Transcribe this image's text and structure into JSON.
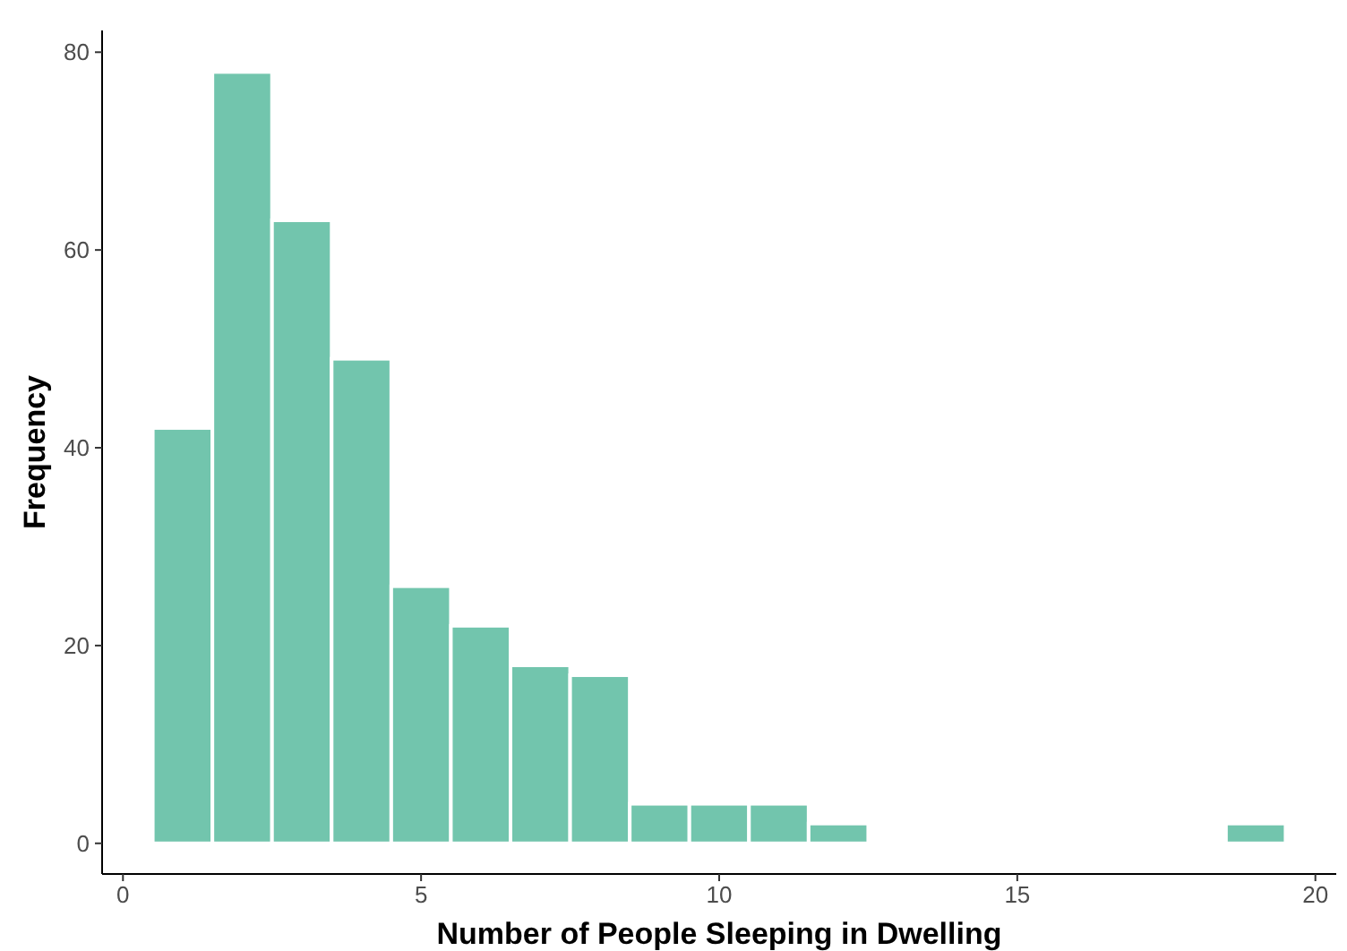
{
  "chart_data": {
    "type": "histogram",
    "xlabel": "Number of People Sleeping in Dwelling",
    "ylabel": "Frequency",
    "bins": [
      0.5,
      1.5,
      2.5,
      3.5,
      4.5,
      5.5,
      6.5,
      7.5,
      8.5,
      9.5,
      10.5,
      11.5,
      12.5,
      13.5,
      14.5,
      15.5,
      16.5,
      17.5,
      18.5,
      19.5
    ],
    "values": [
      42,
      78,
      63,
      49,
      26,
      22,
      18,
      17,
      4,
      4,
      4,
      2,
      0,
      0,
      0,
      0,
      0,
      0,
      2
    ],
    "color": "#72c5ad",
    "xlim": [
      -0.35,
      20.35
    ],
    "xticks": [
      0,
      5,
      10,
      15,
      20
    ],
    "ylim": [
      -3.1,
      82.2
    ],
    "yticks": [
      0,
      20,
      40,
      60,
      80
    ],
    "grid": false
  }
}
